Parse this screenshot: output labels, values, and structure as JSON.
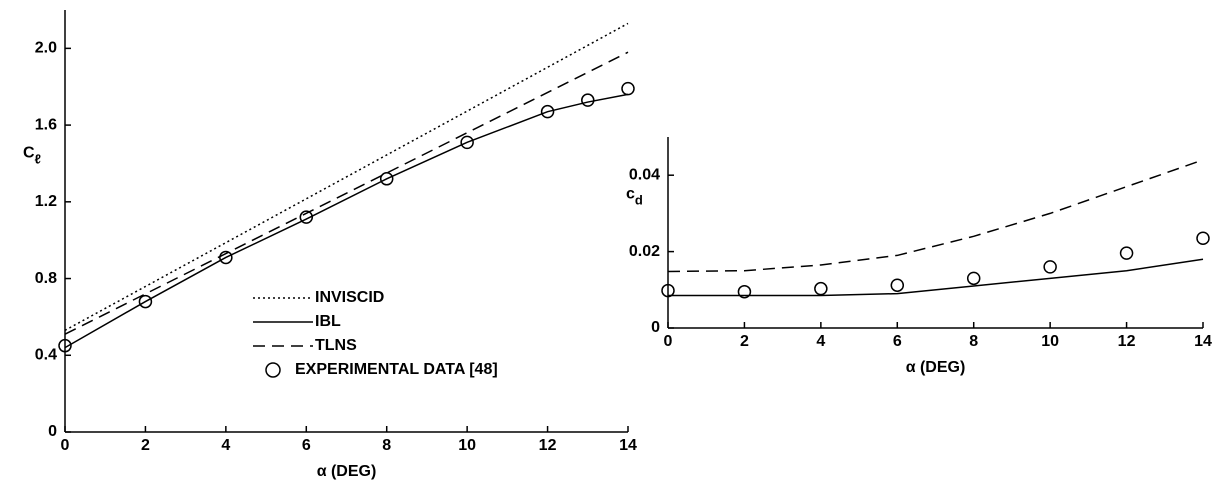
{
  "chart_data": [
    {
      "type": "line",
      "xlabel": "α (DEG)",
      "ylabel": {
        "main": "C",
        "sub": "ℓ"
      },
      "xlim": [
        0,
        14
      ],
      "xticks": [
        0,
        2,
        4,
        6,
        8,
        10,
        12,
        14
      ],
      "ylim": [
        0,
        2.2
      ],
      "yticks": [
        0,
        0.4,
        0.8,
        1.2,
        1.6,
        {
          "value": 2,
          "label": "2.0"
        }
      ],
      "legend": "lower right",
      "series": [
        {
          "name": "INVISCID",
          "color": "#000000",
          "style": "dotted",
          "x": [
            0,
            14
          ],
          "values": [
            0.53,
            2.13
          ]
        },
        {
          "name": "IBL",
          "color": "#000000",
          "style": "solid",
          "x": [
            0,
            2,
            4,
            6,
            8,
            10,
            12,
            13,
            14
          ],
          "values": [
            0.44,
            0.68,
            0.91,
            1.11,
            1.32,
            1.51,
            1.67,
            1.72,
            1.76
          ]
        },
        {
          "name": "TLNS",
          "color": "#000000",
          "style": "dashed",
          "x": [
            0,
            14
          ],
          "values": [
            0.51,
            1.98
          ]
        },
        {
          "name": "EXPERIMENTAL DATA [48]",
          "color": "#000000",
          "style": "circle",
          "x": [
            0,
            2,
            4,
            6,
            8,
            10,
            12,
            13,
            14
          ],
          "values": [
            0.45,
            0.68,
            0.91,
            1.12,
            1.32,
            1.51,
            1.67,
            1.73,
            1.79
          ]
        }
      ]
    },
    {
      "type": "line",
      "xlabel": "α (DEG)",
      "ylabel": {
        "main": "c",
        "sub": "d"
      },
      "xlim": [
        0,
        14
      ],
      "xticks": [
        0,
        2,
        4,
        6,
        8,
        10,
        12,
        14
      ],
      "ylim": [
        0,
        0.05
      ],
      "yticks": [
        0,
        0.02,
        0.04
      ],
      "series": [
        {
          "color": "#000000",
          "style": "dashed",
          "x": [
            0,
            2,
            4,
            6,
            8,
            10,
            12,
            14
          ],
          "values": [
            0.0148,
            0.015,
            0.0165,
            0.019,
            0.024,
            0.03,
            0.037,
            0.044
          ]
        },
        {
          "color": "#000000",
          "style": "solid",
          "x": [
            0,
            2,
            4,
            6,
            8,
            10,
            12,
            14
          ],
          "values": [
            0.0085,
            0.0085,
            0.0085,
            0.009,
            0.011,
            0.013,
            0.015,
            0.018
          ]
        },
        {
          "color": "#000000",
          "style": "circle",
          "x": [
            0,
            2,
            4,
            6,
            8,
            10,
            12,
            14
          ],
          "values": [
            0.0098,
            0.0095,
            0.0103,
            0.0112,
            0.013,
            0.016,
            0.0196,
            0.0235
          ]
        }
      ]
    }
  ]
}
